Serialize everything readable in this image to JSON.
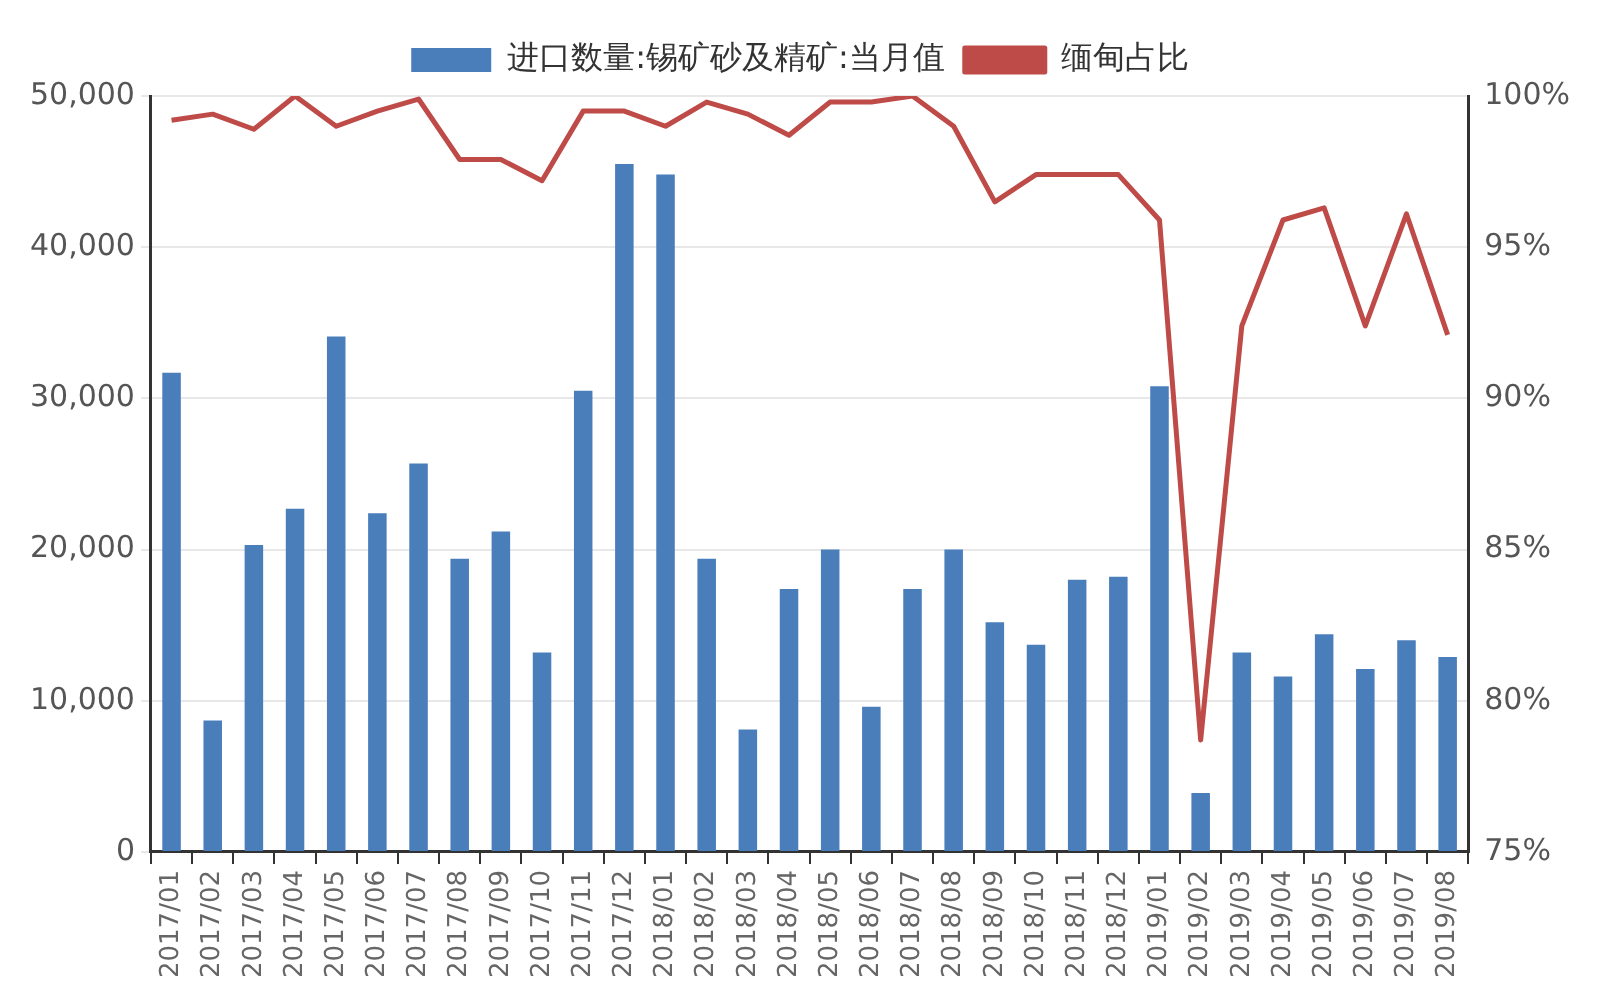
{
  "chart_data": {
    "type": "bar",
    "categories": [
      "2017/01",
      "2017/02",
      "2017/03",
      "2017/04",
      "2017/05",
      "2017/06",
      "2017/07",
      "2017/08",
      "2017/09",
      "2017/10",
      "2017/11",
      "2017/12",
      "2018/01",
      "2018/02",
      "2018/03",
      "2018/04",
      "2018/05",
      "2018/06",
      "2018/07",
      "2018/08",
      "2018/09",
      "2018/10",
      "2018/11",
      "2018/12",
      "2019/01",
      "2019/02",
      "2019/03",
      "2019/04",
      "2019/05",
      "2019/06",
      "2019/07",
      "2019/08"
    ],
    "series": [
      {
        "name": "进口数量:锡矿砂及精矿:当月值",
        "color": "#4a7ebb",
        "values": [
          31700,
          8700,
          20300,
          22700,
          34100,
          22400,
          25700,
          19400,
          21200,
          13200,
          30500,
          45500,
          44800,
          19400,
          8100,
          17400,
          20000,
          9600,
          17400,
          20000,
          15200,
          13700,
          18000,
          18200,
          30800,
          3900,
          13200,
          11600,
          14400,
          12100,
          14000,
          12900
        ]
      },
      {
        "name": "缅甸占比",
        "type": "line",
        "axis": "y2",
        "color": "#be4b48",
        "values": [
          99.2,
          99.4,
          98.9,
          100,
          99.0,
          99.5,
          99.9,
          97.9,
          97.9,
          97.2,
          99.5,
          99.5,
          99.0,
          99.8,
          99.4,
          98.7,
          99.8,
          99.8,
          100,
          99.0,
          96.5,
          97.4,
          97.4,
          97.4,
          95.9,
          78.7,
          92.4,
          95.9,
          96.3,
          92.4,
          96.1,
          92.1
        ]
      }
    ],
    "ylim": [
      0,
      50000
    ],
    "yticks": [
      {
        "value": 0,
        "label": "0"
      },
      {
        "value": 10000,
        "label": "10,000"
      },
      {
        "value": 20000,
        "label": "20,000"
      },
      {
        "value": 30000,
        "label": "30,000"
      },
      {
        "value": 40000,
        "label": "40,000"
      },
      {
        "value": 50000,
        "label": "50,000"
      }
    ],
    "y2lim": [
      75,
      100
    ],
    "y2ticks": [
      {
        "value": 75,
        "label": "75%"
      },
      {
        "value": 80,
        "label": "80%"
      },
      {
        "value": 85,
        "label": "85%"
      },
      {
        "value": 90,
        "label": "90%"
      },
      {
        "value": 95,
        "label": "95%"
      },
      {
        "value": 100,
        "label": "100%"
      }
    ],
    "grid": "y",
    "legend": "top",
    "marker": "none"
  }
}
